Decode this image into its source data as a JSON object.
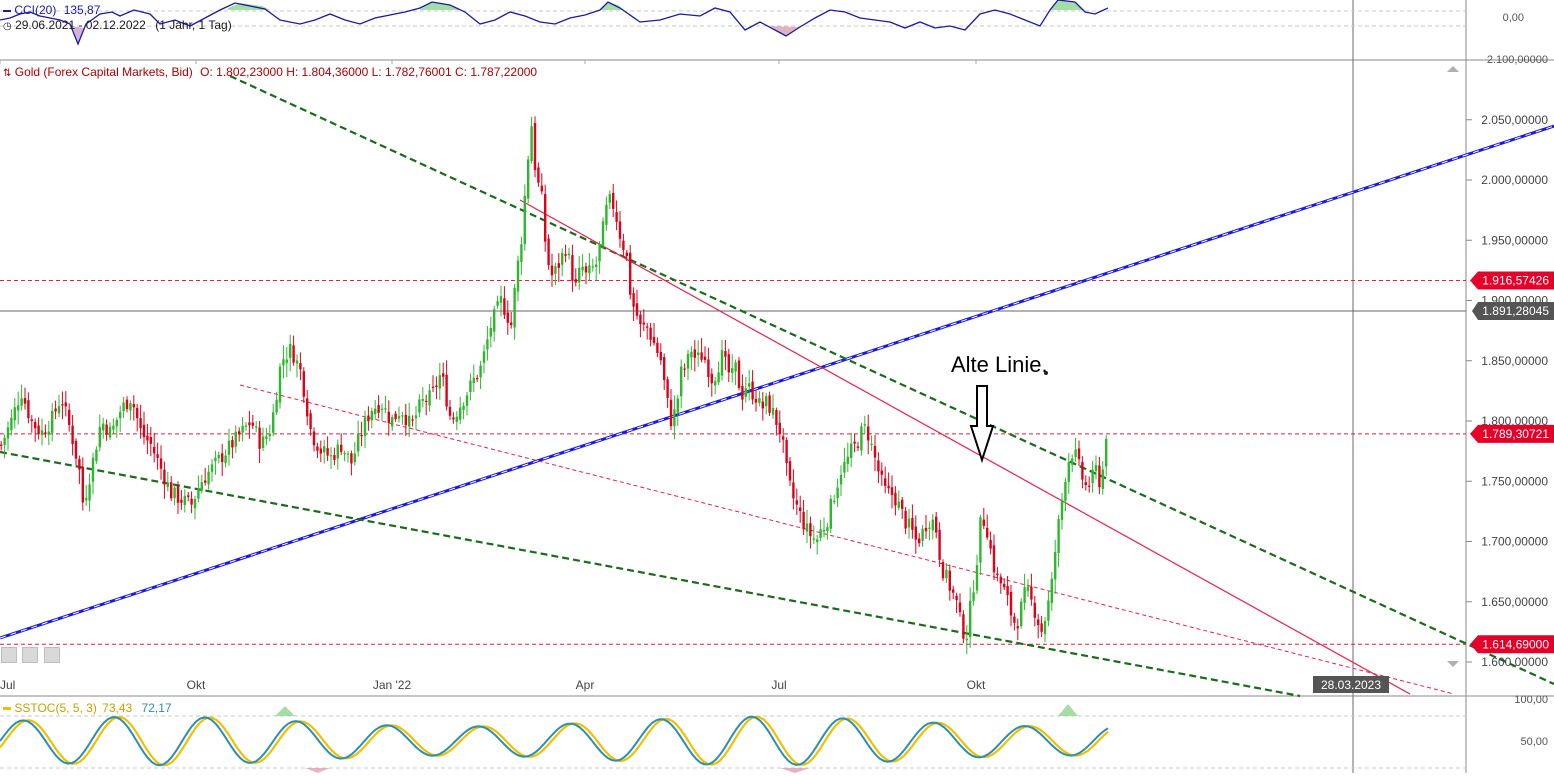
{
  "header": {
    "cci_title": "CCI(20)",
    "cci_value": "135,87",
    "range_text": "29.06.2021 - 02.12.2022",
    "range_period": "(1 Jahr, 1 Tag)",
    "cci_axis_zero": "0,00",
    "price_title": "Gold (Forex Capital Markets, Bid)",
    "price_ohlc": "O: 1.802,23000  H: 1.804,36000  L: 1.782,76001  C: 1.787,22000",
    "stoch_title": "SSTOC(5, 5, 3)",
    "stoch_k": "73,43",
    "stoch_d": "72,17",
    "stoch_axis_100": "100,00",
    "stoch_axis_50": "50,00",
    "top_partial_tick": "2.100,00000"
  },
  "annotation": {
    "text": "Alte Linie."
  },
  "colors": {
    "up": "#2db82d",
    "down": "#e0001a",
    "cci_line": "#1a1aa6",
    "trend_blue": "#1a1ae6",
    "trend_green": "#1a6b1a",
    "trend_red": "#e8204d",
    "label_red": "#e5002a",
    "label_grey": "#555555",
    "stoch_k": "#f0c000",
    "stoch_d": "#2a8fb0"
  },
  "chart_data": {
    "type": "candlestick",
    "title": "Gold (Forex Capital Markets, Bid)",
    "x": [
      "Jul",
      "Okt",
      "Jan '22",
      "Apr",
      "Jul",
      "Okt"
    ],
    "ylim": [
      1578,
      2105
    ],
    "y_ticks": [
      "1.600,00000",
      "1.650,00000",
      "1.700,00000",
      "1.750,00000",
      "1.800,00000",
      "1.850,00000",
      "1.900,00000",
      "1.950,00000",
      "2.000,00000",
      "2.050,00000"
    ],
    "y_tick_values": [
      1600,
      1650,
      1700,
      1750,
      1800,
      1850,
      1900,
      1950,
      2000,
      2050
    ],
    "date_marker": "28.03.2023",
    "price_levels": [
      {
        "value": 1916.57426,
        "label": "1.916,57426",
        "style": "dashed-red"
      },
      {
        "value": 1891.28045,
        "label": "1.891,28045",
        "style": "solid-grey"
      },
      {
        "value": 1789.30721,
        "label": "1.789,30721",
        "style": "dashed-red"
      },
      {
        "value": 1614.69,
        "label": "1.614,69000",
        "style": "dashed-red"
      }
    ],
    "close_path": [
      [
        0,
        1780
      ],
      [
        10,
        1800
      ],
      [
        20,
        1825
      ],
      [
        30,
        1800
      ],
      [
        40,
        1790
      ],
      [
        50,
        1800
      ],
      [
        60,
        1820
      ],
      [
        70,
        1790
      ],
      [
        78,
        1760
      ],
      [
        82,
        1730
      ],
      [
        90,
        1760
      ],
      [
        100,
        1800
      ],
      [
        110,
        1790
      ],
      [
        120,
        1810
      ],
      [
        130,
        1820
      ],
      [
        140,
        1790
      ],
      [
        150,
        1780
      ],
      [
        160,
        1760
      ],
      [
        170,
        1740
      ],
      [
        180,
        1735
      ],
      [
        190,
        1730
      ],
      [
        200,
        1750
      ],
      [
        210,
        1760
      ],
      [
        220,
        1770
      ],
      [
        230,
        1780
      ],
      [
        240,
        1790
      ],
      [
        250,
        1800
      ],
      [
        260,
        1780
      ],
      [
        270,
        1795
      ],
      [
        280,
        1850
      ],
      [
        290,
        1860
      ],
      [
        300,
        1840
      ],
      [
        310,
        1790
      ],
      [
        320,
        1775
      ],
      [
        330,
        1770
      ],
      [
        340,
        1780
      ],
      [
        350,
        1765
      ],
      [
        360,
        1790
      ],
      [
        370,
        1810
      ],
      [
        380,
        1815
      ],
      [
        390,
        1800
      ],
      [
        400,
        1810
      ],
      [
        410,
        1795
      ],
      [
        420,
        1815
      ],
      [
        430,
        1820
      ],
      [
        440,
        1840
      ],
      [
        450,
        1800
      ],
      [
        460,
        1815
      ],
      [
        470,
        1830
      ],
      [
        480,
        1845
      ],
      [
        490,
        1880
      ],
      [
        500,
        1900
      ],
      [
        510,
        1880
      ],
      [
        515,
        1920
      ],
      [
        520,
        1950
      ],
      [
        525,
        2000
      ],
      [
        530,
        2050
      ],
      [
        535,
        2000
      ],
      [
        540,
        1990
      ],
      [
        545,
        1940
      ],
      [
        550,
        1920
      ],
      [
        555,
        1925
      ],
      [
        560,
        1935
      ],
      [
        565,
        1945
      ],
      [
        570,
        1925
      ],
      [
        575,
        1910
      ],
      [
        580,
        1930
      ],
      [
        585,
        1920
      ],
      [
        590,
        1925
      ],
      [
        595,
        1930
      ],
      [
        600,
        1950
      ],
      [
        605,
        1975
      ],
      [
        610,
        1985
      ],
      [
        615,
        1970
      ],
      [
        620,
        1950
      ],
      [
        625,
        1940
      ],
      [
        630,
        1900
      ],
      [
        635,
        1890
      ],
      [
        640,
        1875
      ],
      [
        645,
        1880
      ],
      [
        650,
        1870
      ],
      [
        655,
        1860
      ],
      [
        660,
        1850
      ],
      [
        665,
        1820
      ],
      [
        670,
        1800
      ],
      [
        675,
        1810
      ],
      [
        680,
        1840
      ],
      [
        685,
        1845
      ],
      [
        690,
        1860
      ],
      [
        695,
        1850
      ],
      [
        700,
        1855
      ],
      [
        705,
        1850
      ],
      [
        710,
        1835
      ],
      [
        715,
        1840
      ],
      [
        720,
        1855
      ],
      [
        725,
        1845
      ],
      [
        730,
        1835
      ],
      [
        735,
        1845
      ],
      [
        740,
        1820
      ],
      [
        745,
        1830
      ],
      [
        750,
        1825
      ],
      [
        755,
        1820
      ],
      [
        760,
        1810
      ],
      [
        765,
        1815
      ],
      [
        770,
        1810
      ],
      [
        775,
        1800
      ],
      [
        780,
        1790
      ],
      [
        785,
        1760
      ],
      [
        790,
        1740
      ],
      [
        795,
        1730
      ],
      [
        800,
        1720
      ],
      [
        805,
        1710
      ],
      [
        810,
        1705
      ],
      [
        815,
        1700
      ],
      [
        820,
        1710
      ],
      [
        825,
        1715
      ],
      [
        830,
        1730
      ],
      [
        835,
        1745
      ],
      [
        840,
        1760
      ],
      [
        845,
        1765
      ],
      [
        850,
        1775
      ],
      [
        855,
        1780
      ],
      [
        860,
        1790
      ],
      [
        865,
        1795
      ],
      [
        870,
        1780
      ],
      [
        875,
        1765
      ],
      [
        880,
        1750
      ],
      [
        885,
        1740
      ],
      [
        890,
        1740
      ],
      [
        895,
        1735
      ],
      [
        900,
        1725
      ],
      [
        905,
        1715
      ],
      [
        910,
        1710
      ],
      [
        915,
        1700
      ],
      [
        920,
        1705
      ],
      [
        925,
        1715
      ],
      [
        930,
        1720
      ],
      [
        935,
        1710
      ],
      [
        940,
        1680
      ],
      [
        945,
        1670
      ],
      [
        950,
        1660
      ],
      [
        955,
        1650
      ],
      [
        960,
        1630
      ],
      [
        965,
        1620
      ],
      [
        970,
        1650
      ],
      [
        975,
        1680
      ],
      [
        980,
        1720
      ],
      [
        985,
        1715
      ],
      [
        990,
        1690
      ],
      [
        995,
        1670
      ],
      [
        1000,
        1665
      ],
      [
        1005,
        1655
      ],
      [
        1010,
        1640
      ],
      [
        1015,
        1630
      ],
      [
        1020,
        1645
      ],
      [
        1025,
        1660
      ],
      [
        1030,
        1650
      ],
      [
        1035,
        1640
      ],
      [
        1040,
        1625
      ],
      [
        1045,
        1640
      ],
      [
        1050,
        1660
      ],
      [
        1055,
        1700
      ],
      [
        1060,
        1730
      ],
      [
        1065,
        1760
      ],
      [
        1070,
        1775
      ],
      [
        1075,
        1770
      ],
      [
        1080,
        1755
      ],
      [
        1085,
        1745
      ],
      [
        1090,
        1750
      ],
      [
        1095,
        1760
      ],
      [
        1100,
        1745
      ],
      [
        1105,
        1790
      ],
      [
        1108,
        1798
      ]
    ]
  }
}
